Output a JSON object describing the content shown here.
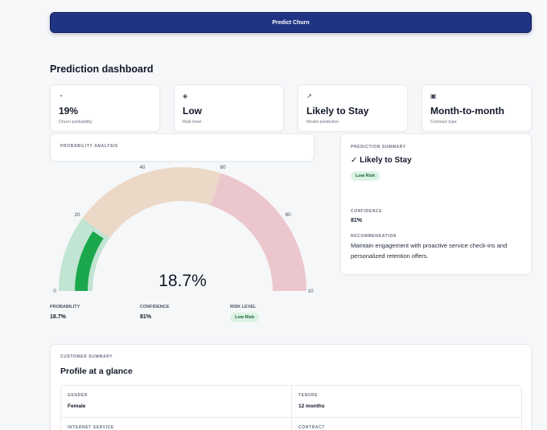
{
  "actions": {
    "predict_label": "Predict Churn"
  },
  "dashboard": {
    "title": "Prediction dashboard",
    "kpis": [
      {
        "icon": "pie-chart-icon",
        "glyph": "◔",
        "value": "19%",
        "label": "Churn probability"
      },
      {
        "icon": "diamond-icon",
        "glyph": "◈",
        "value": "Low",
        "label": "Risk level"
      },
      {
        "icon": "trend-arrow-icon",
        "glyph": "↗",
        "value": "Likely to Stay",
        "label": "Model prediction"
      },
      {
        "icon": "document-icon",
        "glyph": "▣",
        "value": "Month-to-month",
        "label": "Contract type"
      }
    ]
  },
  "analysis": {
    "heading": "PROBABILITY ANALYSIS",
    "gauge": {
      "value": 18.7,
      "value_text": "18.7%",
      "ticks": [
        "0",
        "20",
        "40",
        "60",
        "80",
        "10"
      ],
      "bands": [
        {
          "from": 0,
          "to": 20,
          "color": "#c2e4d2"
        },
        {
          "from": 20,
          "to": 60,
          "color": "#ebd8c6"
        },
        {
          "from": 60,
          "to": 100,
          "color": "#ebc7cd"
        }
      ],
      "needle_color": "#1ba84c"
    },
    "stats": {
      "probability_label": "PROBABILITY",
      "probability_value": "18.7%",
      "confidence_label": "CONFIDENCE",
      "confidence_value": "81%",
      "risk_label": "RISK LEVEL",
      "risk_value": "Low Risk"
    }
  },
  "summary": {
    "heading": "PREDICTION SUMMARY",
    "title": "✓ Likely to Stay",
    "badge": "Low Risk",
    "confidence_label": "CONFIDENCE",
    "confidence_value": "81%",
    "recommendation_label": "RECOMMENDATION",
    "recommendation_text": "Maintain engagement with proactive service check-ins and personalized retention offers."
  },
  "customer": {
    "heading": "CUSTOMER SUMMARY",
    "title": "Profile at a glance",
    "fields": [
      {
        "label": "GENDER",
        "value": "Female"
      },
      {
        "label": "TENURE",
        "value": "12 months"
      },
      {
        "label": "INTERNET SERVICE",
        "value": ""
      },
      {
        "label": "CONTRACT",
        "value": ""
      }
    ]
  }
}
